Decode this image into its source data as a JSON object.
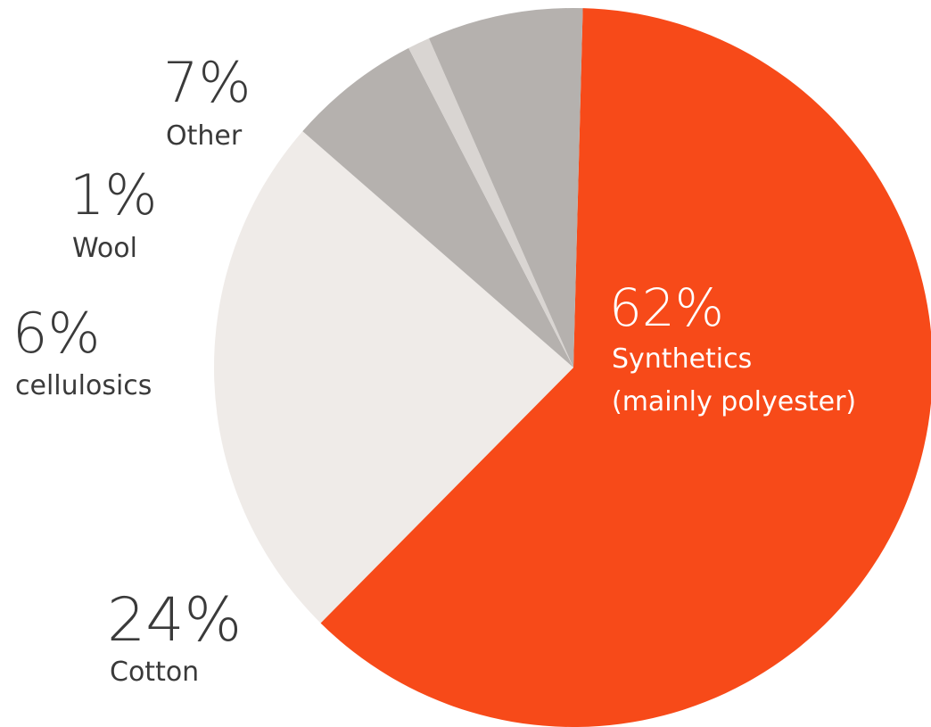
{
  "chart_data": {
    "type": "pie",
    "title": "",
    "slices": [
      {
        "value": 62,
        "pct_label": "62%",
        "label_lines": [
          "Synthetics",
          "(mainly polyester)"
        ],
        "color": "#f74a19"
      },
      {
        "value": 24,
        "pct_label": "24%",
        "label_lines": [
          "Cotton"
        ],
        "color": "#efebe8"
      },
      {
        "value": 6,
        "pct_label": "6%",
        "label_lines": [
          "cellulosics"
        ],
        "color": "#b5b1ae"
      },
      {
        "value": 1,
        "pct_label": "1%",
        "label_lines": [
          "Wool"
        ],
        "color": "#d9d5d2"
      },
      {
        "value": 7,
        "pct_label": "7%",
        "label_lines": [
          "Other"
        ],
        "color": "#b5b1ae"
      }
    ]
  }
}
